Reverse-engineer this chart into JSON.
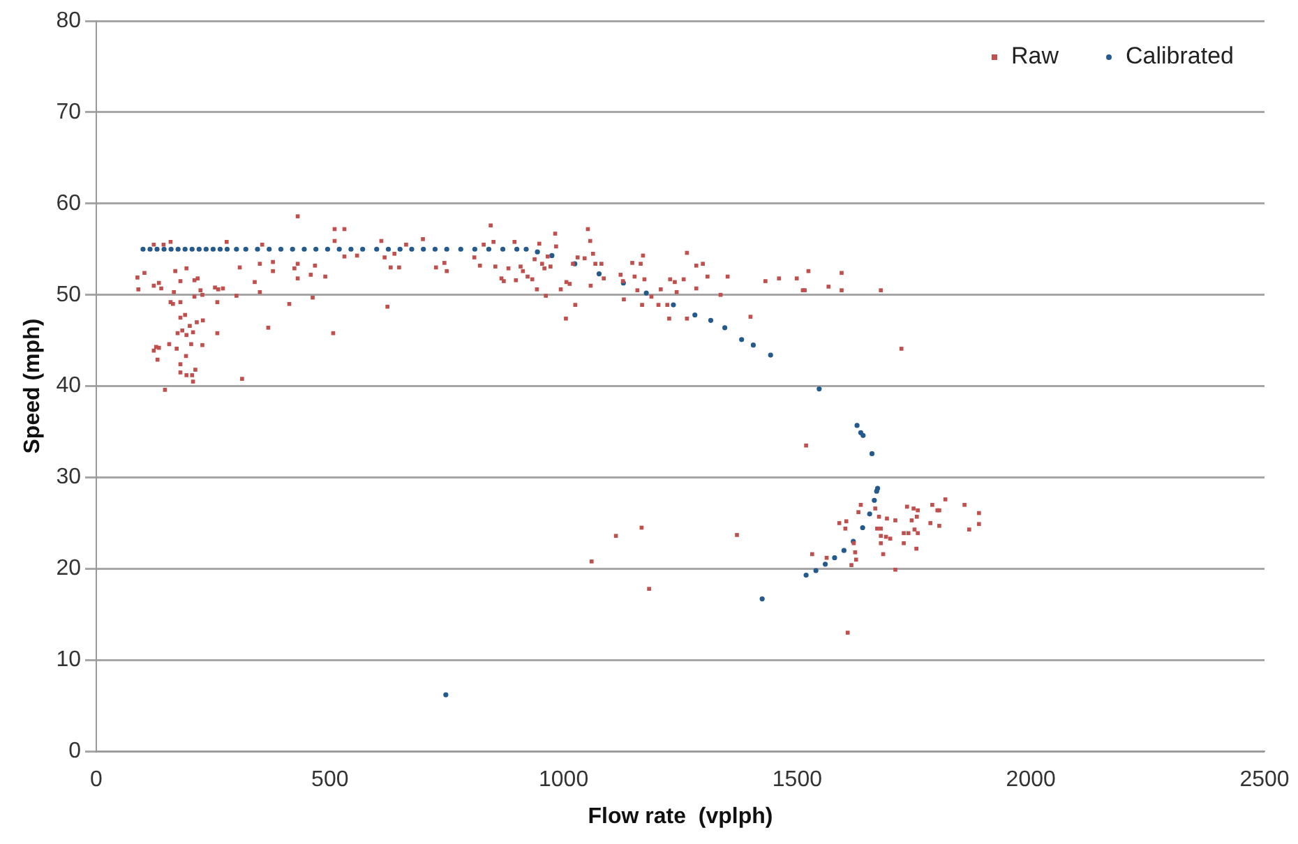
{
  "chart_data": {
    "type": "scatter",
    "xlabel": "Flow rate  (vplph)",
    "ylabel": "Speed (mph)",
    "xlim": [
      0,
      2500
    ],
    "xticks": [
      0,
      500,
      1000,
      1500,
      2000,
      2500
    ],
    "ylim": [
      0,
      80
    ],
    "yticks": [
      0,
      10,
      20,
      30,
      40,
      50,
      60,
      70,
      80
    ],
    "grid": "y",
    "legend": "top right",
    "series": [
      {
        "name": "Raw",
        "color": "#c0504d",
        "marker": "square",
        "x": [
          88,
          103,
          90,
          123,
          144,
          159,
          123,
          134,
          139,
          166,
          159,
          164,
          180,
          169,
          180,
          193,
          210,
          217,
          210,
          223,
          227,
          254,
          261,
          271,
          259,
          180,
          190,
          200,
          215,
          228,
          174,
          184,
          193,
          207,
          203,
          227,
          259,
          128,
          123,
          134,
          156,
          172,
          131,
          192,
          180,
          180,
          193,
          205,
          207,
          212,
          147,
          312,
          300,
          307,
          339,
          350,
          350,
          355,
          378,
          378,
          368,
          279,
          413,
          424,
          431,
          431,
          431,
          459,
          468,
          463,
          490,
          507,
          510,
          531,
          510,
          531,
          558,
          610,
          617,
          630,
          623,
          648,
          638,
          663,
          699,
          727,
          745,
          750,
          809,
          821,
          829,
          844,
          850,
          854,
          867,
          872,
          882,
          895,
          898,
          908,
          913,
          923,
          933,
          938,
          948,
          954,
          959,
          966,
          972,
          982,
          984,
          943,
          962,
          994,
          1006,
          1013,
          1005,
          1025,
          1020,
          1030,
          1045,
          1052,
          1057,
          1063,
          1068,
          1058,
          1081,
          1086,
          1122,
          1127,
          1129,
          1147,
          1152,
          1158,
          1165,
          1170,
          1173,
          1168,
          1188,
          1203,
          1208,
          1222,
          1226,
          1228,
          1238,
          1242,
          1257,
          1264,
          1264,
          1284,
          1298,
          1284,
          1308,
          1336,
          1351,
          1400,
          1432,
          1461,
          1499,
          1524,
          1512,
          1516,
          1567,
          1595,
          1595,
          1679,
          1723,
          1519,
          1371,
          1608,
          1532,
          1563,
          1616,
          1626,
          1624,
          1621,
          1590,
          1605,
          1603,
          1631,
          1636,
          1667,
          1675,
          1692,
          1710,
          1671,
          1679,
          1679,
          1690,
          1699,
          1679,
          1684,
          1710,
          1728,
          1728,
          1738,
          1755,
          1751,
          1758,
          1756,
          1745,
          1735,
          1749,
          1758,
          1789,
          1800,
          1804,
          1817,
          1785,
          1804,
          1858,
          1868,
          1889,
          1889,
          1060,
          1112,
          1167,
          1183
        ],
        "values": [
          51.9,
          52.4,
          50.6,
          55.5,
          55.5,
          55.8,
          51.0,
          51.3,
          50.7,
          50.3,
          49.2,
          49.0,
          49.2,
          52.6,
          51.5,
          52.9,
          51.6,
          51.8,
          49.8,
          50.5,
          50.0,
          50.8,
          50.6,
          50.7,
          49.2,
          47.5,
          47.8,
          46.6,
          47.0,
          47.2,
          45.8,
          46.1,
          45.6,
          45.9,
          44.6,
          44.5,
          45.8,
          44.3,
          43.9,
          44.2,
          44.6,
          44.1,
          42.9,
          43.3,
          42.4,
          41.5,
          41.2,
          41.2,
          40.5,
          41.8,
          39.6,
          40.8,
          49.9,
          53.0,
          51.4,
          53.4,
          50.3,
          55.5,
          53.6,
          52.6,
          46.4,
          55.8,
          49.0,
          52.9,
          53.4,
          51.8,
          58.6,
          52.2,
          53.2,
          49.7,
          52.0,
          45.8,
          57.2,
          57.2,
          55.9,
          54.2,
          54.3,
          55.9,
          54.1,
          53.0,
          48.7,
          53.0,
          54.5,
          55.5,
          56.1,
          53.0,
          53.5,
          52.6,
          54.1,
          53.2,
          55.5,
          57.6,
          55.8,
          53.1,
          51.8,
          51.5,
          52.9,
          55.8,
          51.6,
          53.1,
          52.6,
          52.0,
          51.7,
          53.9,
          55.6,
          53.4,
          52.9,
          54.2,
          53.1,
          56.7,
          55.3,
          50.6,
          49.9,
          50.6,
          51.4,
          51.2,
          47.4,
          48.9,
          53.4,
          54.1,
          54.0,
          57.2,
          55.9,
          54.5,
          53.4,
          51.0,
          53.4,
          51.8,
          52.2,
          51.5,
          49.5,
          53.5,
          52.0,
          50.5,
          53.4,
          54.3,
          51.7,
          48.9,
          49.8,
          48.9,
          50.6,
          48.9,
          47.4,
          51.7,
          51.4,
          50.3,
          51.7,
          54.6,
          47.4,
          53.2,
          53.4,
          50.7,
          52.0,
          50.0,
          52.0,
          47.6,
          51.5,
          51.8,
          51.8,
          52.6,
          50.5,
          50.5,
          50.9,
          52.4,
          50.5,
          50.5,
          44.1,
          33.5,
          23.7,
          13.0,
          21.6,
          21.2,
          20.4,
          21.0,
          21.8,
          22.8,
          25.0,
          25.2,
          24.4,
          26.2,
          27.0,
          26.6,
          25.7,
          25.5,
          25.3,
          24.4,
          24.4,
          23.6,
          23.5,
          23.3,
          22.8,
          21.6,
          19.9,
          22.8,
          23.9,
          23.9,
          22.2,
          24.3,
          23.9,
          25.7,
          25.3,
          26.8,
          26.6,
          26.4,
          27.0,
          26.4,
          26.4,
          27.6,
          25.0,
          24.7,
          27.0,
          24.3,
          26.1,
          24.9,
          20.8,
          23.6,
          24.5,
          17.8
        ]
      },
      {
        "name": "Calibrated",
        "color": "#255a8c",
        "marker": "circle",
        "x": [
          100,
          115,
          130,
          145,
          160,
          175,
          190,
          205,
          220,
          235,
          250,
          265,
          280,
          300,
          320,
          345,
          370,
          395,
          420,
          445,
          470,
          495,
          520,
          545,
          570,
          600,
          625,
          650,
          675,
          700,
          725,
          750,
          780,
          810,
          840,
          870,
          900,
          920,
          944,
          975,
          1024,
          1076,
          1128,
          1177,
          1235,
          1281,
          1315,
          1345,
          1381,
          1406,
          1443,
          1547,
          1628,
          1636,
          1641,
          1660,
          1672,
          1670,
          1665,
          1655,
          1640,
          1620,
          1600,
          1580,
          1560,
          1540,
          1519,
          1425,
          748
        ],
        "values": [
          55,
          55,
          55,
          55,
          55,
          55,
          55,
          55,
          55,
          55,
          55,
          55,
          55,
          55,
          55,
          55,
          55,
          55,
          55,
          55,
          55,
          55,
          55,
          55,
          55,
          55,
          55,
          55,
          55,
          55,
          55,
          55,
          55,
          55,
          55,
          55,
          55,
          55,
          54.7,
          54.3,
          53.4,
          52.3,
          51.3,
          50.2,
          48.9,
          47.8,
          47.2,
          46.4,
          45.1,
          44.5,
          43.4,
          39.7,
          35.7,
          34.9,
          34.6,
          32.6,
          28.8,
          28.5,
          27.5,
          26.0,
          24.5,
          23.0,
          22.0,
          21.2,
          20.5,
          19.8,
          19.3,
          16.7,
          6.2
        ]
      }
    ]
  }
}
